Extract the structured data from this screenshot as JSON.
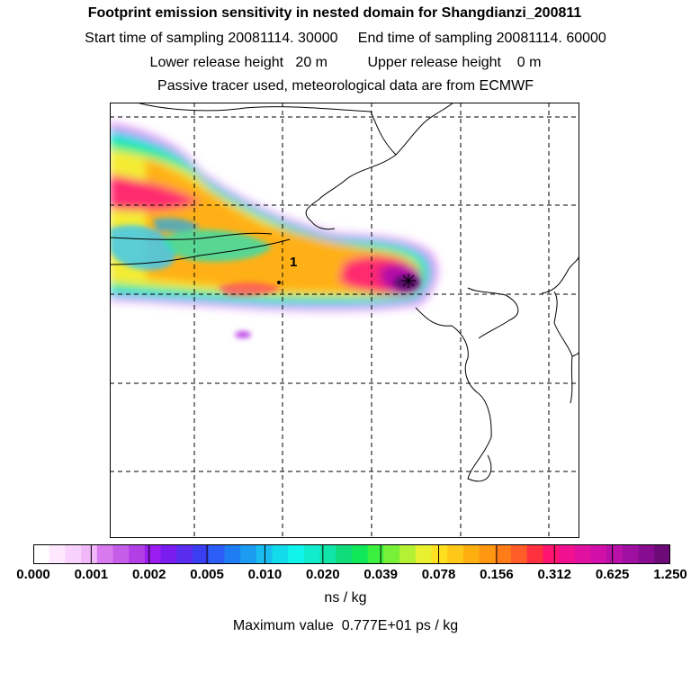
{
  "header": {
    "title": "Footprint emission sensitivity in nested domain for Shangdianzi_200811",
    "sampling": "Start time of sampling 20081114. 30000     End time of sampling 20081114. 60000",
    "release": "Lower release height   20 m          Upper release height    0 m",
    "note": "Passive tracer used, meteorological data are from ECMWF"
  },
  "map": {
    "site_label": "1"
  },
  "colorbar": {
    "ticks": [
      "0.000",
      "0.001",
      "0.002",
      "0.005",
      "0.010",
      "0.020",
      "0.039",
      "0.078",
      "0.156",
      "0.312",
      "0.625",
      "1.250"
    ],
    "units": "ns / kg",
    "colors": [
      "#ffffff",
      "#fde8fe",
      "#f8d2fc",
      "#f0b8f8",
      "#d879f0",
      "#c55de9",
      "#b23ee6",
      "#9a1cf0",
      "#7a1cf0",
      "#5a2cf0",
      "#3a3ef2",
      "#2a5ef4",
      "#1f7df4",
      "#1c9cf0",
      "#18bcee",
      "#12dcec",
      "#10f4ec",
      "#10eccc",
      "#10e4a8",
      "#10dc7c",
      "#10e85a",
      "#3cf040",
      "#78f038",
      "#b4f034",
      "#e8f030",
      "#ffe020",
      "#ffc818",
      "#ffb010",
      "#ff9810",
      "#ff7c18",
      "#ff5c28",
      "#ff3040",
      "#ff1470",
      "#f01090",
      "#e010a0",
      "#d010a8",
      "#b810a8",
      "#a010a0",
      "#880c90",
      "#6c0a78"
    ]
  },
  "footer": {
    "max_value": "Maximum value  0.777E+01 ps / kg"
  }
}
